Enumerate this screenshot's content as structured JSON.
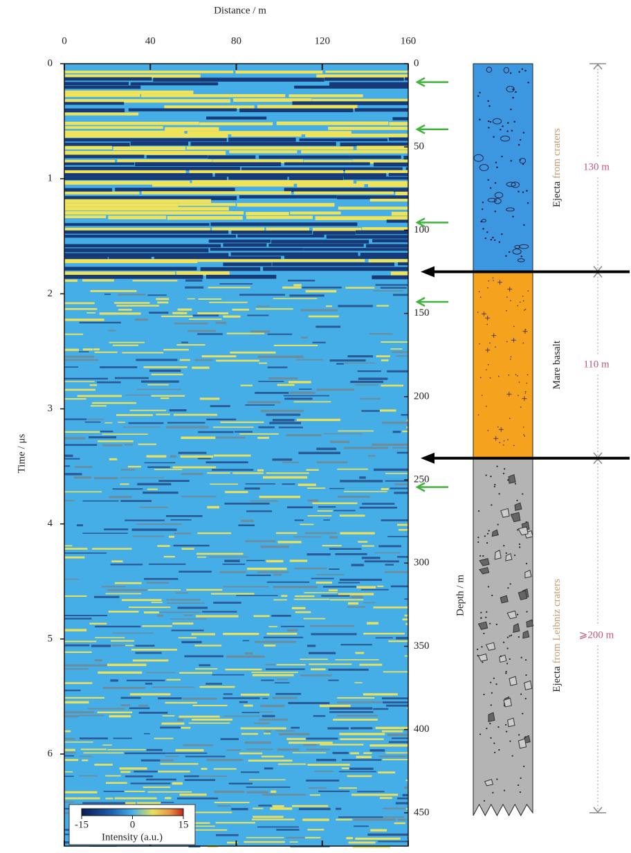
{
  "chart_data": {
    "type": "radargram",
    "x_label": "Distance / m",
    "xlim": [
      0,
      160
    ],
    "xticks": [
      0,
      40,
      80,
      120,
      160
    ],
    "y_label": "Time / μs",
    "ylim": [
      0,
      6.8
    ],
    "yticks": [
      0,
      1,
      2,
      3,
      4,
      5,
      6
    ],
    "y2_label": "Depth / m",
    "y2lim": [
      0,
      470
    ],
    "y2ticks": [
      0,
      50,
      100,
      150,
      200,
      250,
      300,
      350,
      400,
      450
    ],
    "colorbar": {
      "label": "Intensity (a.u.)",
      "lim": [
        -15,
        15
      ],
      "ticks": [
        -15,
        0,
        15
      ]
    },
    "reflector_arrows_time": [
      0.16,
      0.57,
      1.38,
      2.07,
      3.68
    ],
    "layers": [
      {
        "name": "Ejecta",
        "qualifier": "from craters",
        "thickness": "130 m",
        "top": 0,
        "bottom": 125,
        "color": "#3d97e0"
      },
      {
        "name": "Mare basalt",
        "thickness": "110 m",
        "top": 125,
        "bottom": 237,
        "color": "#f5a21e"
      },
      {
        "name": "Ejecta",
        "qualifier": "from Leibniz craters",
        "thickness": "⩾200 m",
        "top": 237,
        "bottom": 450,
        "color": "#b4b4b4"
      }
    ]
  }
}
